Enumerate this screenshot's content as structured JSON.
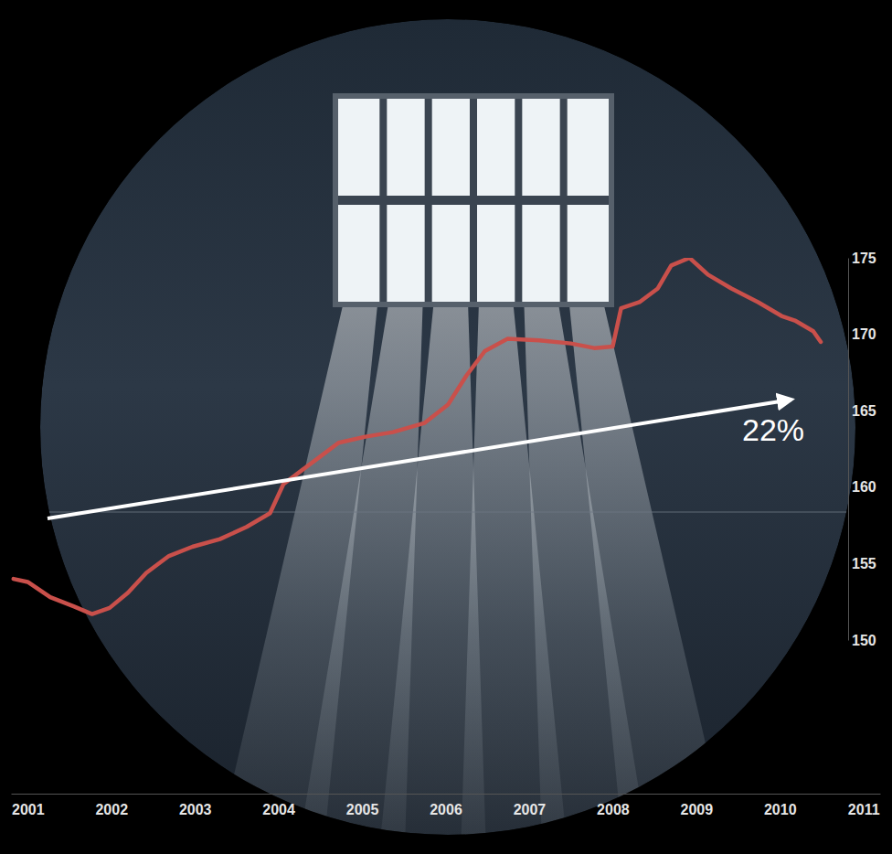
{
  "chart_data": {
    "type": "line",
    "x": [
      2000.83,
      2001.0,
      2001.27,
      2001.55,
      2001.77,
      2001.98,
      2002.2,
      2002.42,
      2002.69,
      2002.97,
      2003.3,
      2003.62,
      2003.9,
      2004.06,
      2004.28,
      2004.5,
      2004.72,
      2005.04,
      2005.37,
      2005.75,
      2006.03,
      2006.25,
      2006.47,
      2006.74,
      2007.12,
      2007.5,
      2007.78,
      2008.0,
      2008.1,
      2008.32,
      2008.54,
      2008.7,
      2008.92,
      2009.14,
      2009.42,
      2009.74,
      2010.02,
      2010.18,
      2010.4,
      2010.49
    ],
    "values": [
      154.0,
      153.8,
      152.8,
      152.2,
      151.7,
      152.1,
      153.1,
      154.4,
      155.5,
      156.1,
      156.6,
      157.4,
      158.3,
      160.2,
      161.1,
      162.0,
      162.9,
      163.3,
      163.6,
      164.2,
      165.4,
      167.3,
      168.9,
      169.7,
      169.6,
      169.4,
      169.1,
      169.2,
      171.7,
      172.1,
      173.0,
      174.5,
      175.0,
      173.9,
      173.0,
      172.1,
      171.2,
      170.9,
      170.2,
      169.5
    ],
    "color": "#c9504b",
    "xlim": [
      2000.8,
      2011.2
    ],
    "xticks": [
      2001,
      2002,
      2003,
      2004,
      2005,
      2006,
      2007,
      2008,
      2009,
      2010,
      2011
    ],
    "ylim": [
      150,
      175
    ],
    "yticks": [
      150,
      155,
      160,
      165,
      170,
      175
    ],
    "annotation": "22%"
  }
}
